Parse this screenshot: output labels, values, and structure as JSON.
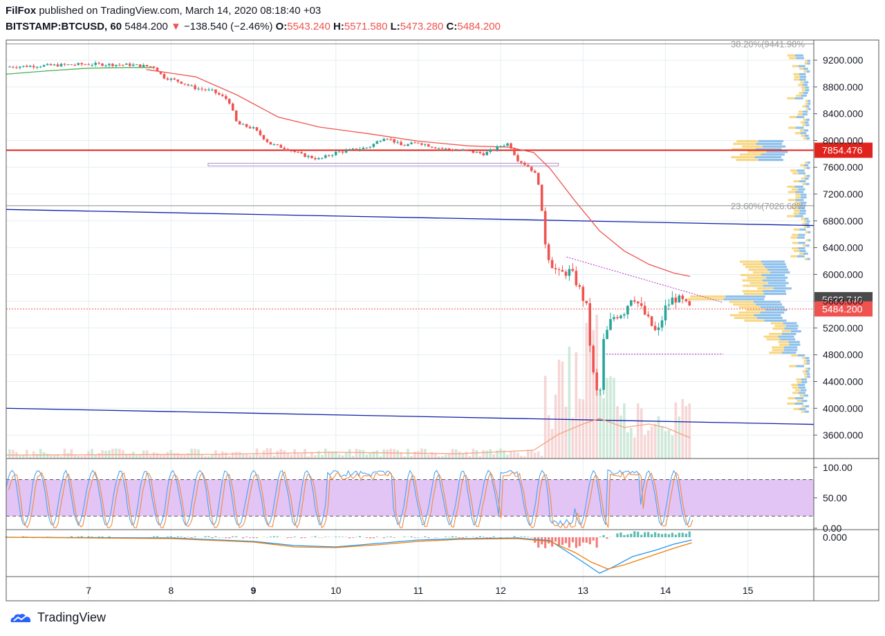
{
  "header": {
    "author": "FilFox",
    "published_text": "published on TradingView.com, March 14, 2020 08:18:40 +03",
    "symbol": "BITSTAMP:BTCUSD, 60",
    "last_price": "5484.200",
    "change": "−138.540 (−2.46%)",
    "open_label": "O:",
    "open": "5543.240",
    "high_label": "H:",
    "high": "5571.580",
    "low_label": "L:",
    "low": "5473.280",
    "close_label": "C:",
    "close": "5484.200"
  },
  "footer": {
    "brand": "TradingView"
  },
  "colors": {
    "up": "#26a69a",
    "down": "#ef5350",
    "sma": "#ef5350",
    "sma2": "#4caf50",
    "trend": "#0d1ea8",
    "level": "#e0231c",
    "stoch_fill": "#e2c4f5"
  },
  "chart_data": [
    {
      "type": "candlestick",
      "ylim": [
        3250,
        9500
      ],
      "x_ticks": [
        {
          "label": "7",
          "x": 7
        },
        {
          "label": "8",
          "x": 8
        },
        {
          "label": "9",
          "x": 9,
          "bold": true
        },
        {
          "label": "10",
          "x": 10
        },
        {
          "label": "11",
          "x": 11
        },
        {
          "label": "12",
          "x": 12
        },
        {
          "label": "13",
          "x": 13
        },
        {
          "label": "14",
          "x": 14
        },
        {
          "label": "15",
          "x": 15
        }
      ],
      "x_range": [
        6.0,
        15.8
      ],
      "y_ticks": [
        "9200.000",
        "8800.000",
        "8400.000",
        "8000.000",
        "7600.000",
        "7200.000",
        "6800.000",
        "6400.000",
        "6000.000",
        "5600.000",
        "5200.000",
        "4800.000",
        "4400.000",
        "4000.000",
        "3600.000"
      ],
      "y_tick_values": [
        9200,
        8800,
        8400,
        8000,
        7600,
        7200,
        6800,
        6400,
        6000,
        5600,
        5200,
        4800,
        4400,
        4000,
        3600
      ],
      "fib_levels": [
        {
          "label": "38.20%(9441.98%",
          "value": 9441.98
        },
        {
          "label": "23.60%(7026.60%",
          "value": 7026.6
        }
      ],
      "price_badges": [
        {
          "label": "7854.476",
          "value": 7854.476,
          "color": "#e0231c"
        },
        {
          "label": "5622.740",
          "value": 5622.74,
          "color": "#4a4a4a"
        },
        {
          "label": "5484.200",
          "value": 5484.2,
          "color": "#ef5350"
        }
      ],
      "horizontal_line": 7854.476,
      "current_price_line": 5484.2,
      "trend_lines": [
        {
          "x1": 6.0,
          "y1": 6970,
          "x2": 15.8,
          "y2": 6730
        },
        {
          "x1": 6.0,
          "y1": 4000,
          "x2": 15.8,
          "y2": 3760
        }
      ],
      "channel_band": {
        "x1": 8.45,
        "x2": 12.7,
        "y_top": 7660,
        "y_bottom": 7620
      },
      "dotted_lines": [
        {
          "x1": 12.8,
          "y1": 6260,
          "x2": 14.7,
          "y2": 5580
        },
        {
          "x1": 13.25,
          "y1": 4810,
          "x2": 14.7,
          "y2": 4810
        }
      ],
      "sma_red": [
        [
          7.7,
          9060
        ],
        [
          8.3,
          8950
        ],
        [
          8.8,
          8680
        ],
        [
          9.3,
          8350
        ],
        [
          9.8,
          8200
        ],
        [
          10.4,
          8100
        ],
        [
          11.0,
          7990
        ],
        [
          11.6,
          7920
        ],
        [
          12.1,
          7900
        ],
        [
          12.4,
          7820
        ],
        [
          12.6,
          7580
        ],
        [
          12.9,
          7100
        ],
        [
          13.2,
          6650
        ],
        [
          13.5,
          6350
        ],
        [
          13.8,
          6150
        ],
        [
          14.1,
          6020
        ],
        [
          14.3,
          5970
        ]
      ],
      "sma_green": [
        [
          6.0,
          8990
        ],
        [
          6.5,
          9040
        ],
        [
          7.0,
          9080
        ],
        [
          7.5,
          9090
        ],
        [
          7.8,
          9090
        ]
      ],
      "price_path": [
        [
          6.0,
          9100
        ],
        [
          6.5,
          9120
        ],
        [
          7.0,
          9140
        ],
        [
          7.5,
          9130
        ],
        [
          7.8,
          9100
        ],
        [
          7.9,
          8950
        ],
        [
          8.1,
          8880
        ],
        [
          8.3,
          8780
        ],
        [
          8.5,
          8740
        ],
        [
          8.7,
          8600
        ],
        [
          8.8,
          8250
        ],
        [
          9.0,
          8180
        ],
        [
          9.2,
          7950
        ],
        [
          9.4,
          7880
        ],
        [
          9.6,
          7780
        ],
        [
          9.8,
          7720
        ],
        [
          10.0,
          7820
        ],
        [
          10.2,
          7860
        ],
        [
          10.4,
          7900
        ],
        [
          10.6,
          8060
        ],
        [
          10.8,
          7920
        ],
        [
          11.0,
          7970
        ],
        [
          11.2,
          7900
        ],
        [
          11.4,
          7860
        ],
        [
          11.6,
          7840
        ],
        [
          11.8,
          7800
        ],
        [
          12.0,
          7920
        ],
        [
          12.1,
          7960
        ],
        [
          12.2,
          7720
        ],
        [
          12.35,
          7600
        ],
        [
          12.45,
          7450
        ],
        [
          12.55,
          6400
        ],
        [
          12.6,
          6200
        ],
        [
          12.7,
          6000
        ],
        [
          12.85,
          6050
        ],
        [
          12.95,
          5800
        ],
        [
          13.05,
          5480
        ],
        [
          13.1,
          4700
        ],
        [
          13.15,
          4300
        ],
        [
          13.2,
          4120
        ],
        [
          13.25,
          5000
        ],
        [
          13.35,
          5350
        ],
        [
          13.5,
          5450
        ],
        [
          13.6,
          5700
        ],
        [
          13.7,
          5500
        ],
        [
          13.8,
          5300
        ],
        [
          13.9,
          5100
        ],
        [
          14.0,
          5500
        ],
        [
          14.1,
          5650
        ],
        [
          14.2,
          5600
        ],
        [
          14.3,
          5484
        ]
      ],
      "volume_profile_top": 9300,
      "volume_profile_bottom": 3950
    },
    {
      "type": "line",
      "name": "stochastic",
      "ylim": [
        0,
        110
      ],
      "y_ticks": [
        "100.00",
        "50.00",
        "0.00"
      ],
      "y_tick_values": [
        100,
        50,
        0
      ],
      "band": [
        20,
        80
      ]
    },
    {
      "type": "line",
      "name": "macd",
      "y_ticks": [
        "0.000"
      ],
      "y_tick_values": [
        0
      ]
    }
  ]
}
